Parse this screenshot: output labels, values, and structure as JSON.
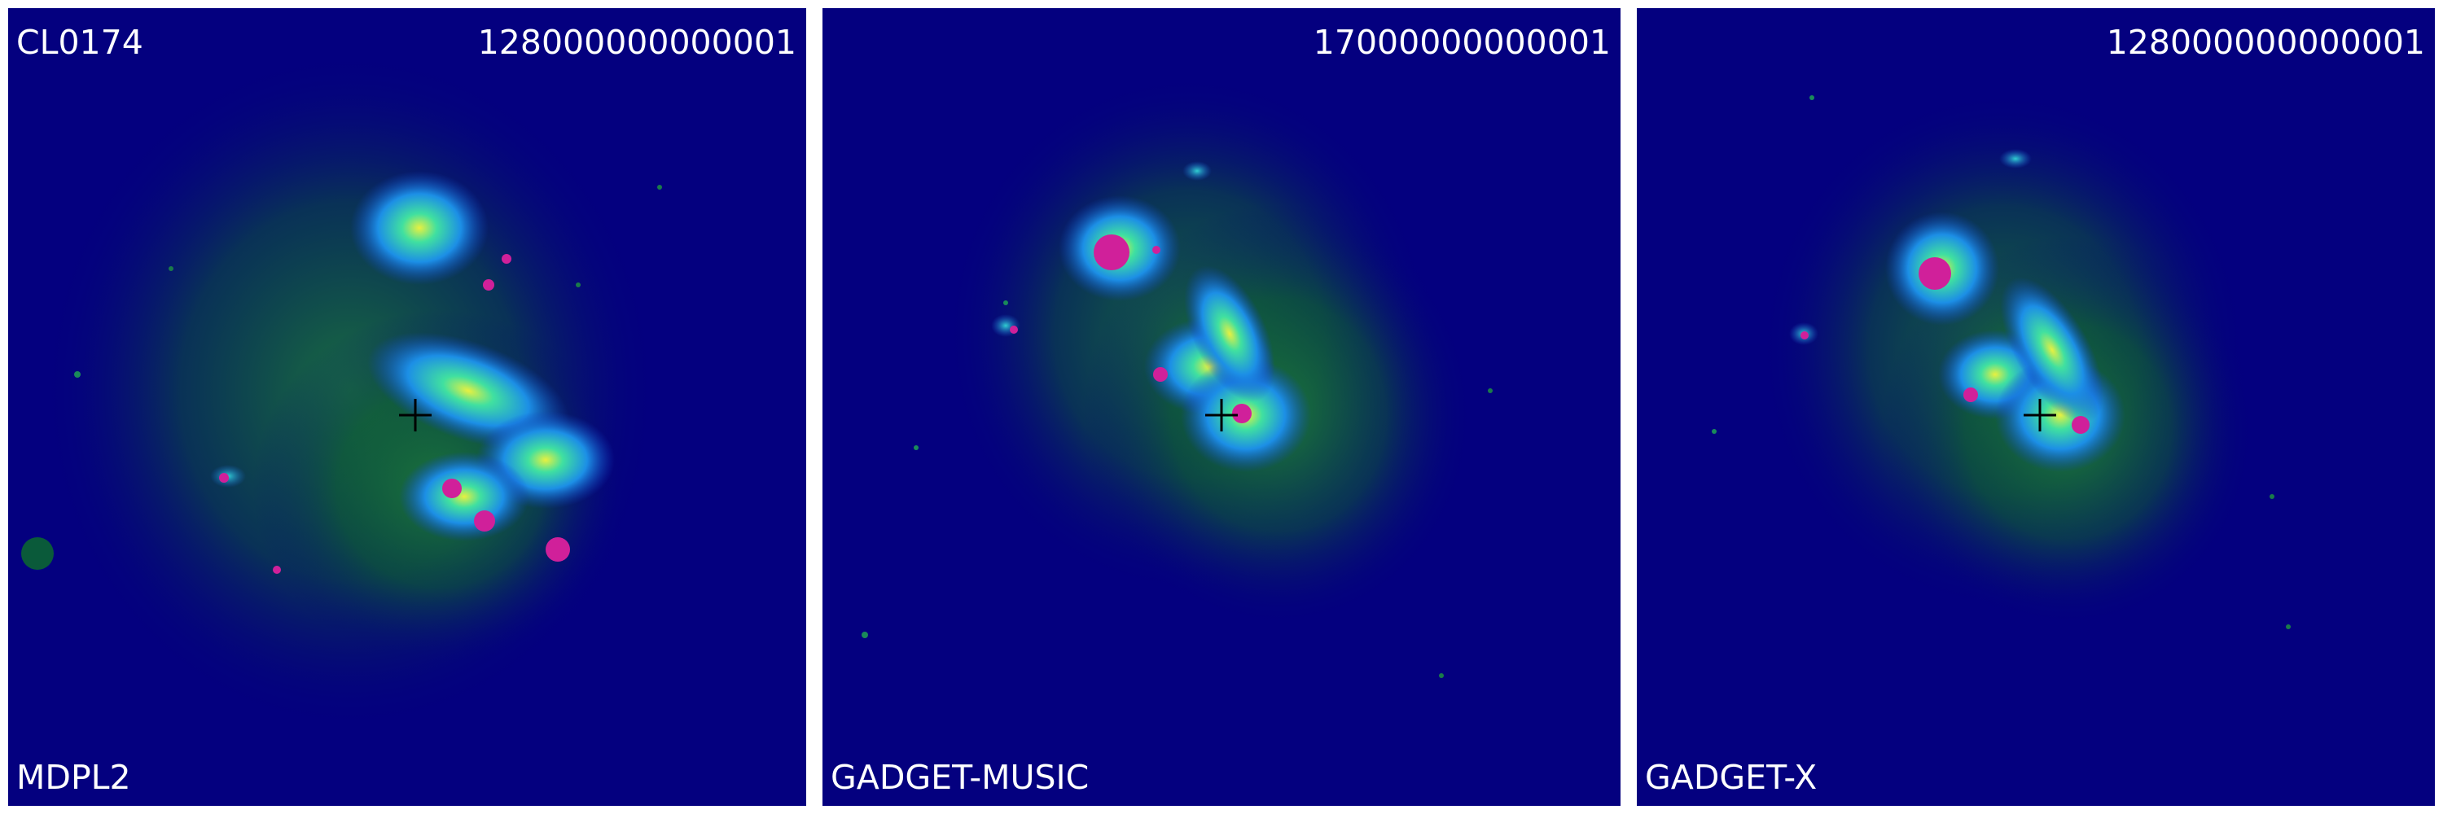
{
  "panels": [
    {
      "cluster": "CL0174",
      "value": "128000000000001",
      "simulation": "MDPL2"
    },
    {
      "cluster": "",
      "value": "17000000000001",
      "simulation": "GADGET-MUSIC"
    },
    {
      "cluster": "",
      "value": "128000000000001",
      "simulation": "GADGET-X"
    }
  ],
  "colors": {
    "background": "#04007f",
    "halo": "#0a6a2a",
    "core": "#1ecbd2",
    "inner": "#e8f040",
    "subhalo": "#d0209a",
    "marker": "#000000"
  }
}
